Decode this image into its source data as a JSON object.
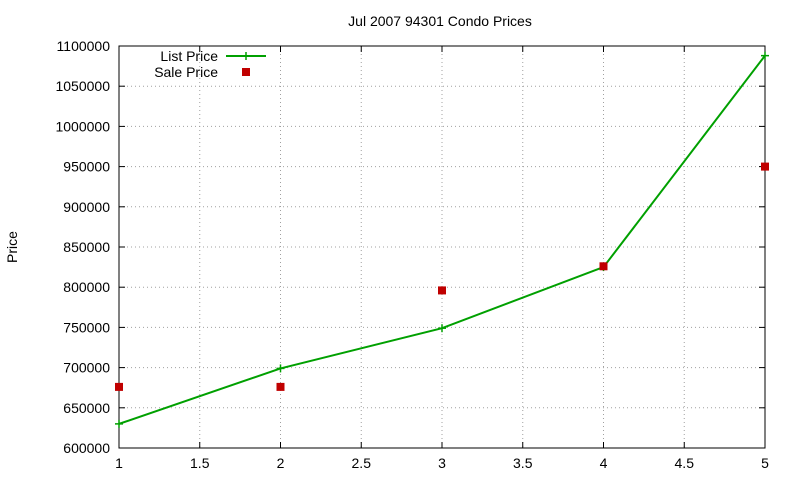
{
  "chart_data": {
    "type": "line",
    "title": "Jul 2007 94301 Condo Prices",
    "xlabel": "",
    "ylabel": "Price",
    "xlim": [
      1,
      5
    ],
    "ylim": [
      600000,
      1100000
    ],
    "grid": true,
    "legend_placement": "top-left",
    "x_ticks": [
      "1",
      "1.5",
      "2",
      "2.5",
      "3",
      "3.5",
      "4",
      "4.5",
      "5"
    ],
    "y_ticks": [
      "600000",
      "650000",
      "700000",
      "750000",
      "800000",
      "850000",
      "900000",
      "950000",
      "1000000",
      "1050000",
      "1100000"
    ],
    "series": [
      {
        "name": "List Price",
        "style": "linespoints",
        "color": "#00a000",
        "marker": "plus",
        "x": [
          1,
          2,
          3,
          4,
          5
        ],
        "y": [
          630000,
          699000,
          749000,
          825000,
          1088000
        ]
      },
      {
        "name": "Sale Price",
        "style": "points",
        "color": "#c00000",
        "marker": "square",
        "x": [
          1,
          2,
          3,
          4,
          5
        ],
        "y": [
          676000,
          676000,
          796000,
          826000,
          950000
        ]
      }
    ]
  }
}
